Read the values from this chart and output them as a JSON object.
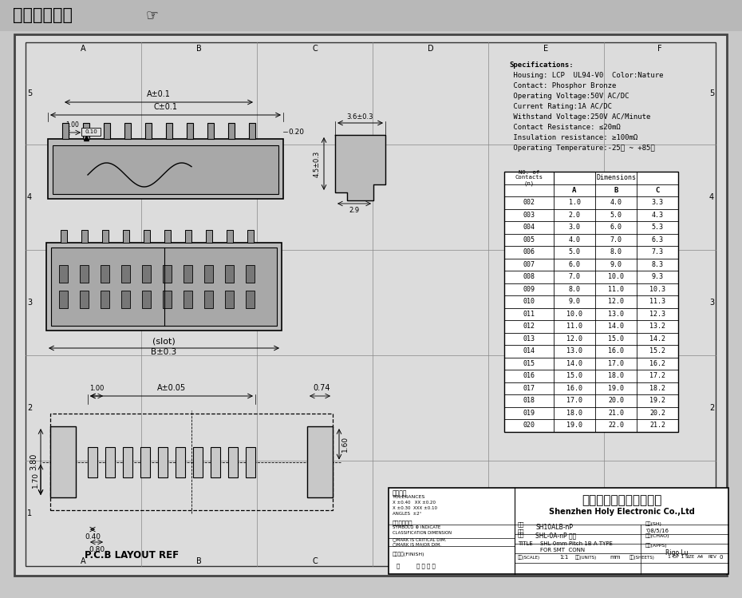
{
  "bg_color": "#c8c8c8",
  "drawing_bg": "#dcdcdc",
  "title_text": "在线图纸下载",
  "specs": [
    "Specifications:",
    " Housing: LCP  UL94-V0  Color:Nature",
    " Contact: Phosphor Bronze",
    " Operating Voltage:50V AC/DC",
    " Current Rating:1A AC/DC",
    " Withstand Voltage:250V AC/Minute",
    " Contact Resistance: ≤20mΩ",
    " Insulation resistance: ≥100mΩ",
    " Operating Temperature:-25℃ ~ +85℃"
  ],
  "table_data": [
    [
      "002",
      "1.0",
      "4.0",
      "3.3"
    ],
    [
      "003",
      "2.0",
      "5.0",
      "4.3"
    ],
    [
      "004",
      "3.0",
      "6.0",
      "5.3"
    ],
    [
      "005",
      "4.0",
      "7.0",
      "6.3"
    ],
    [
      "006",
      "5.0",
      "8.0",
      "7.3"
    ],
    [
      "007",
      "6.0",
      "9.0",
      "8.3"
    ],
    [
      "008",
      "7.0",
      "10.0",
      "9.3"
    ],
    [
      "009",
      "8.0",
      "11.0",
      "10.3"
    ],
    [
      "010",
      "9.0",
      "12.0",
      "11.3"
    ],
    [
      "011",
      "10.0",
      "13.0",
      "12.3"
    ],
    [
      "012",
      "11.0",
      "14.0",
      "13.2"
    ],
    [
      "013",
      "12.0",
      "15.0",
      "14.2"
    ],
    [
      "014",
      "13.0",
      "16.0",
      "15.2"
    ],
    [
      "015",
      "14.0",
      "17.0",
      "16.2"
    ],
    [
      "016",
      "15.0",
      "18.0",
      "17.2"
    ],
    [
      "017",
      "16.0",
      "19.0",
      "18.2"
    ],
    [
      "018",
      "17.0",
      "20.0",
      "19.2"
    ],
    [
      "019",
      "18.0",
      "21.0",
      "20.2"
    ],
    [
      "020",
      "19.0",
      "22.0",
      "21.2"
    ]
  ],
  "company_cn": "深圳市宏利电子有限公司",
  "company_en": "Shenzhen Holy Electronic Co.,Ltd",
  "drawing_no": "SH10ALB-nP",
  "date": "'08/5/16",
  "product_name": "SHL-0A-nP 立贴",
  "title_line1": "SHL 0mm Pitch 1B A TYPE",
  "title_line2": "FOR SMT  CONN",
  "checker": "Rigo Lu",
  "scale": "1:1",
  "unit": "mm",
  "sheet": "1 OF 1",
  "size": "A4",
  "rev": "0"
}
